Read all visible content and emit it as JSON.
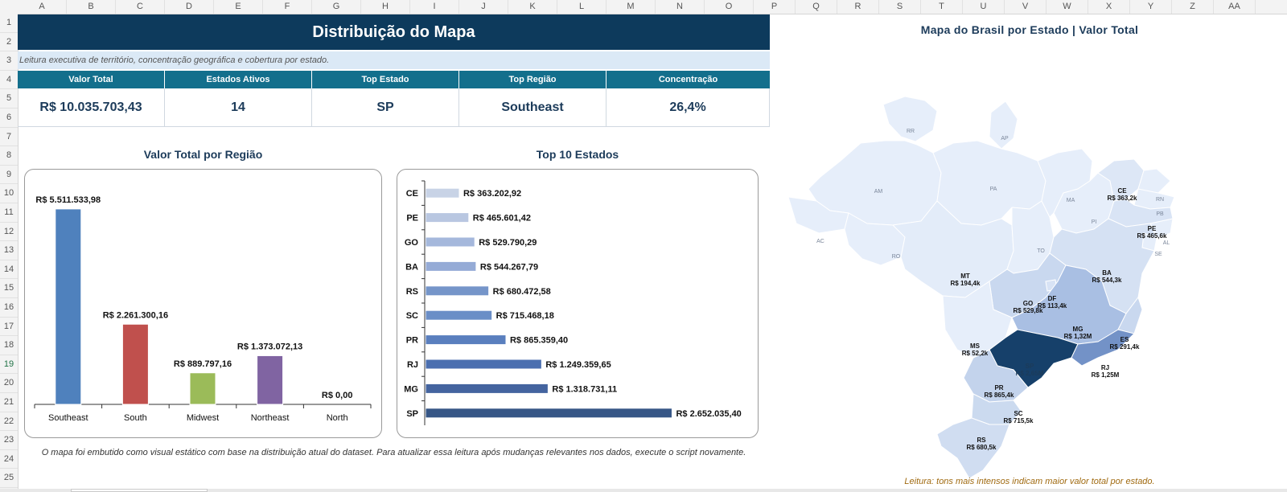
{
  "columns": [
    "A",
    "B",
    "C",
    "D",
    "E",
    "F",
    "G",
    "H",
    "I",
    "J",
    "K",
    "L",
    "M",
    "N",
    "O",
    "P",
    "Q",
    "R",
    "S",
    "T",
    "U",
    "V",
    "W",
    "X",
    "Y",
    "Z",
    "AA"
  ],
  "rows": [
    "1",
    "2",
    "3",
    "4",
    "5",
    "6",
    "7",
    "8",
    "9",
    "10",
    "11",
    "12",
    "13",
    "14",
    "15",
    "16",
    "17",
    "18",
    "19",
    "20",
    "21",
    "22",
    "23",
    "24",
    "25"
  ],
  "header": {
    "title": "Distribuição do Mapa",
    "subtitle": "Leitura executiva de território, concentração geográfica e cobertura por estado."
  },
  "kpis": [
    {
      "label": "Valor Total",
      "value": "R$ 10.035.703,43"
    },
    {
      "label": "Estados Ativos",
      "value": "14"
    },
    {
      "label": "Top Estado",
      "value": "SP"
    },
    {
      "label": "Top Região",
      "value": "Southeast"
    },
    {
      "label": "Concentração",
      "value": "26,4%"
    }
  ],
  "chart_data": [
    {
      "type": "bar",
      "title": "Valor Total por Região",
      "categories": [
        "Southeast",
        "South",
        "Midwest",
        "Northeast",
        "North"
      ],
      "values": [
        5511533.98,
        2261300.16,
        889797.16,
        1373072.13,
        0.0
      ],
      "data_labels": [
        "R$ 5.511.533,98",
        "R$ 2.261.300,16",
        "R$ 889.797,16",
        "R$ 1.373.072,13",
        "R$ 0,00"
      ],
      "colors": [
        "#4f81bd",
        "#c0504d",
        "#9bbb59",
        "#8064a2",
        "#4bacc6"
      ],
      "ylim": [
        0,
        5600000
      ],
      "grid": false
    },
    {
      "type": "bar",
      "orientation": "horizontal",
      "title": "Top 10 Estados",
      "categories": [
        "CE",
        "PE",
        "GO",
        "BA",
        "RS",
        "SC",
        "PR",
        "RJ",
        "MG",
        "SP"
      ],
      "values": [
        363202.92,
        465601.42,
        529790.29,
        544267.79,
        680472.58,
        715468.18,
        865359.4,
        1249359.65,
        1318731.11,
        2652035.4
      ],
      "data_labels": [
        "R$ 363.202,92",
        "R$ 465.601,42",
        "R$ 529.790,29",
        "R$ 544.267,79",
        "R$ 680.472,58",
        "R$ 715.468,18",
        "R$ 865.359,40",
        "R$ 1.249.359,65",
        "R$ 1.318.731,11",
        "R$ 2.652.035,40"
      ],
      "colors": [
        "#c8d3e6",
        "#b9c7e1",
        "#a5b8dc",
        "#95abd6",
        "#7595c9",
        "#6a8ec7",
        "#5a7fbe",
        "#4b6fb0",
        "#44649f",
        "#365686"
      ],
      "xlim": [
        0,
        2700000
      ],
      "grid": false
    }
  ],
  "map": {
    "title": "Mapa do Brasil por Estado | Valor Total",
    "legend": "Leitura: tons mais intensos indicam maior valor total por estado.",
    "labels": [
      {
        "code": "RR",
        "value": ""
      },
      {
        "code": "AP",
        "value": ""
      },
      {
        "code": "AM",
        "value": ""
      },
      {
        "code": "PA",
        "value": ""
      },
      {
        "code": "MA",
        "value": ""
      },
      {
        "code": "CE",
        "value": "R$ 363,2k"
      },
      {
        "code": "RN",
        "value": ""
      },
      {
        "code": "PB",
        "value": ""
      },
      {
        "code": "PE",
        "value": "R$ 465,6k"
      },
      {
        "code": "AL",
        "value": ""
      },
      {
        "code": "SE",
        "value": ""
      },
      {
        "code": "PI",
        "value": ""
      },
      {
        "code": "AC",
        "value": ""
      },
      {
        "code": "RO",
        "value": ""
      },
      {
        "code": "TO",
        "value": ""
      },
      {
        "code": "BA",
        "value": "R$ 544,3k"
      },
      {
        "code": "MT",
        "value": "R$ 194,4k"
      },
      {
        "code": "DF",
        "value": "R$ 113,4k"
      },
      {
        "code": "GO",
        "value": "R$ 529,8k"
      },
      {
        "code": "MG",
        "value": "R$ 1,32M"
      },
      {
        "code": "MS",
        "value": "R$ 52,2k"
      },
      {
        "code": "ES",
        "value": "R$ 291,4k"
      },
      {
        "code": "SP",
        "value": "R$ 2,65M"
      },
      {
        "code": "RJ",
        "value": "R$ 1,25M"
      },
      {
        "code": "PR",
        "value": "R$ 865,4k"
      },
      {
        "code": "SC",
        "value": "R$ 715,5k"
      },
      {
        "code": "RS",
        "value": "R$ 680,5k"
      }
    ]
  },
  "footer_note": "O mapa foi embutido como visual estático com base na distribuição atual do dataset. Para atualizar essa leitura após mudanças relevantes nos dados, execute o script novamente.",
  "selected_row": "19"
}
